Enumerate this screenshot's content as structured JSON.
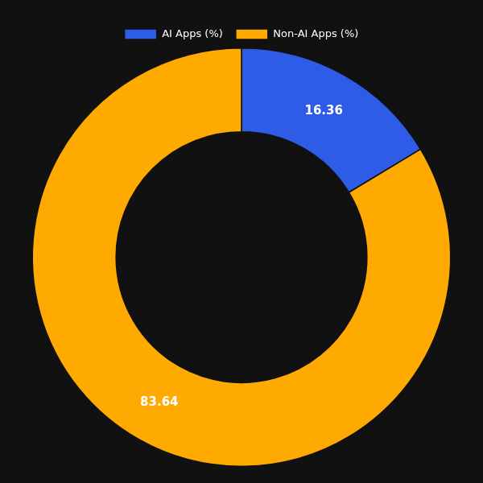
{
  "chart_data": {
    "type": "donut",
    "categories": [
      "AI Apps (%)",
      "Non-AI Apps (%)"
    ],
    "values": [
      16.36,
      83.64
    ],
    "colors": [
      "#2e5ce6",
      "#ffaa00"
    ],
    "data_labels": true,
    "legend": "top"
  }
}
